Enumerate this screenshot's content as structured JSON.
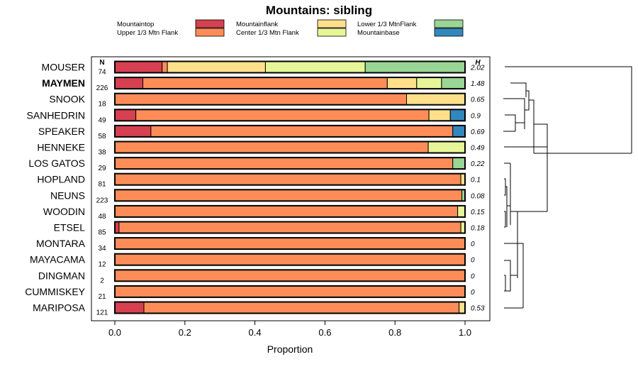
{
  "chart_data": {
    "type": "bar",
    "orientation": "horizontal",
    "stacked": true,
    "title": "Mountains: sibling",
    "xlabel": "Proportion",
    "xlim": [
      0,
      1
    ],
    "xticks": [
      "0.0",
      "0.2",
      "0.4",
      "0.6",
      "0.8",
      "1.0"
    ],
    "n_header": "N",
    "h_header": "H",
    "legend": [
      {
        "name": "Mountaintop",
        "color": "#d64050"
      },
      {
        "name": "Upper 1/3 Mtn Flank",
        "color": "#fc8d59"
      },
      {
        "name": "Mountainflank",
        "color": "#fee08b"
      },
      {
        "name": "Center 1/3 Mtn Flank",
        "color": "#e6f598"
      },
      {
        "name": "Lower 1/3 MtnFlank",
        "color": "#99d594"
      },
      {
        "name": "Mountainbase",
        "color": "#3288bd"
      }
    ],
    "categories": [
      "MOUSER",
      "MAYMEN",
      "SNOOK",
      "SANHEDRIN",
      "SPEAKER",
      "HENNEKE",
      "LOS GATOS",
      "HOPLAND",
      "NEUNS",
      "WOODIN",
      "ETSEL",
      "MONTARA",
      "MAYACAMA",
      "DINGMAN",
      "CUMMISKEY",
      "MARIPOSA"
    ],
    "bold_category": "MAYMEN",
    "n": [
      "74",
      "226",
      "18",
      "49",
      "58",
      "38",
      "29",
      "81",
      "223",
      "48",
      "85",
      "34",
      "12",
      "2",
      "21",
      "121"
    ],
    "h": [
      "2.02",
      "1.48",
      "0.65",
      "0.9",
      "0.69",
      "0.49",
      "0.22",
      "0.1",
      "0.08",
      "0.15",
      "0.18",
      "0",
      "0",
      "0",
      "0",
      "0.53"
    ],
    "series": [
      {
        "name": "Mountaintop",
        "values": [
          0.135,
          0.08,
          0,
          0.06,
          0.103,
          0,
          0,
          0,
          0,
          0,
          0.012,
          0,
          0,
          0,
          0,
          0.083
        ]
      },
      {
        "name": "Upper 1/3 Mtn Flank",
        "values": [
          0.015,
          0.698,
          0.833,
          0.837,
          0.862,
          0.895,
          0.965,
          0.988,
          0.991,
          0.979,
          0.976,
          1.0,
          1.0,
          1.0,
          1.0,
          0.9
        ]
      },
      {
        "name": "Mountainflank",
        "values": [
          0.28,
          0.084,
          0.167,
          0.061,
          0,
          0,
          0,
          0.012,
          0,
          0,
          0,
          0,
          0,
          0,
          0,
          0.017
        ]
      },
      {
        "name": "Center 1/3 Mtn Flank",
        "values": [
          0.285,
          0.071,
          0,
          0,
          0,
          0.105,
          0,
          0,
          0,
          0.021,
          0.012,
          0,
          0,
          0,
          0,
          0
        ]
      },
      {
        "name": "Lower 1/3 MtnFlank",
        "values": [
          0.285,
          0.067,
          0,
          0,
          0,
          0,
          0.035,
          0,
          0.009,
          0,
          0,
          0,
          0,
          0,
          0,
          0
        ]
      },
      {
        "name": "Mountainbase",
        "values": [
          0,
          0,
          0,
          0.042,
          0.035,
          0,
          0,
          0,
          0,
          0,
          0,
          0,
          0,
          0,
          0,
          0
        ]
      }
    ]
  }
}
